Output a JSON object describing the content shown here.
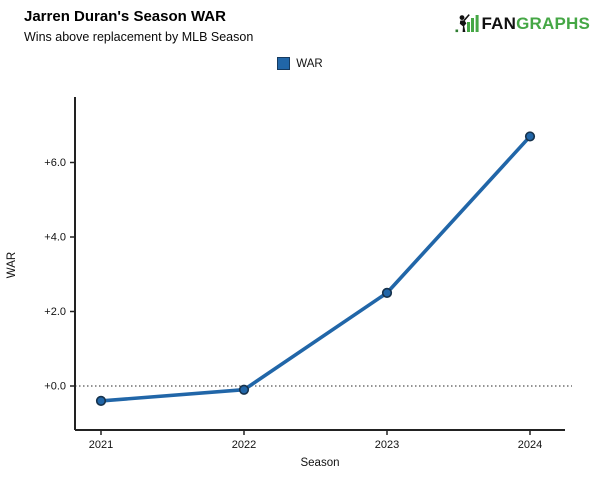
{
  "header": {
    "title": "Jarren Duran's Season WAR",
    "subtitle": "Wins above replacement by MLB Season",
    "logo": {
      "fan": "FAN",
      "graphs": "GRAPHS",
      "green": "#45a745",
      "black": "#111111"
    }
  },
  "legend": {
    "label": "WAR",
    "swatch_color": "#2166a8"
  },
  "chart_data": {
    "type": "line",
    "title": "Jarren Duran's Season WAR",
    "subtitle": "Wins above replacement by MLB Season",
    "categories": [
      "2021",
      "2022",
      "2023",
      "2024"
    ],
    "series": [
      {
        "name": "WAR",
        "values": [
          -0.4,
          -0.1,
          2.5,
          6.7
        ],
        "color": "#2166a8",
        "marker_stroke": "#16324c"
      }
    ],
    "xlabel": "Season",
    "ylabel": "WAR",
    "yticks": [
      0,
      2,
      4,
      6
    ],
    "ytick_labels": [
      "+0.0",
      "+2.0",
      "+4.0",
      "+6.0"
    ],
    "ylim": [
      -1.2,
      7.8
    ],
    "zero_line": true,
    "grid": false,
    "legend_position": "top"
  },
  "colors": {
    "axis": "#222222",
    "tick_text": "#111111",
    "zero_line": "#555555",
    "background": "#ffffff"
  }
}
